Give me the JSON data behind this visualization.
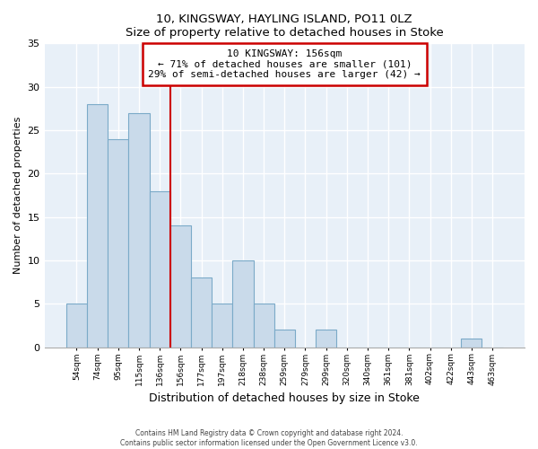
{
  "title1": "10, KINGSWAY, HAYLING ISLAND, PO11 0LZ",
  "title2": "Size of property relative to detached houses in Stoke",
  "xlabel": "Distribution of detached houses by size in Stoke",
  "ylabel": "Number of detached properties",
  "bar_labels": [
    "54sqm",
    "74sqm",
    "95sqm",
    "115sqm",
    "136sqm",
    "156sqm",
    "177sqm",
    "197sqm",
    "218sqm",
    "238sqm",
    "259sqm",
    "279sqm",
    "299sqm",
    "320sqm",
    "340sqm",
    "361sqm",
    "381sqm",
    "402sqm",
    "422sqm",
    "443sqm",
    "463sqm"
  ],
  "bar_values": [
    5,
    28,
    24,
    27,
    18,
    14,
    8,
    5,
    10,
    5,
    2,
    0,
    2,
    0,
    0,
    0,
    0,
    0,
    0,
    1,
    0
  ],
  "bar_color": "#c9daea",
  "bar_edge_color": "#7baac8",
  "vline_color": "#cc0000",
  "annotation_title": "10 KINGSWAY: 156sqm",
  "annotation_line1": "← 71% of detached houses are smaller (101)",
  "annotation_line2": "29% of semi-detached houses are larger (42) →",
  "box_facecolor": "#ffffff",
  "box_edgecolor": "#cc0000",
  "plot_bg": "#e8f0f8",
  "ylim": [
    0,
    35
  ],
  "yticks": [
    0,
    5,
    10,
    15,
    20,
    25,
    30,
    35
  ],
  "footer1": "Contains HM Land Registry data © Crown copyright and database right 2024.",
  "footer2": "Contains public sector information licensed under the Open Government Licence v3.0."
}
